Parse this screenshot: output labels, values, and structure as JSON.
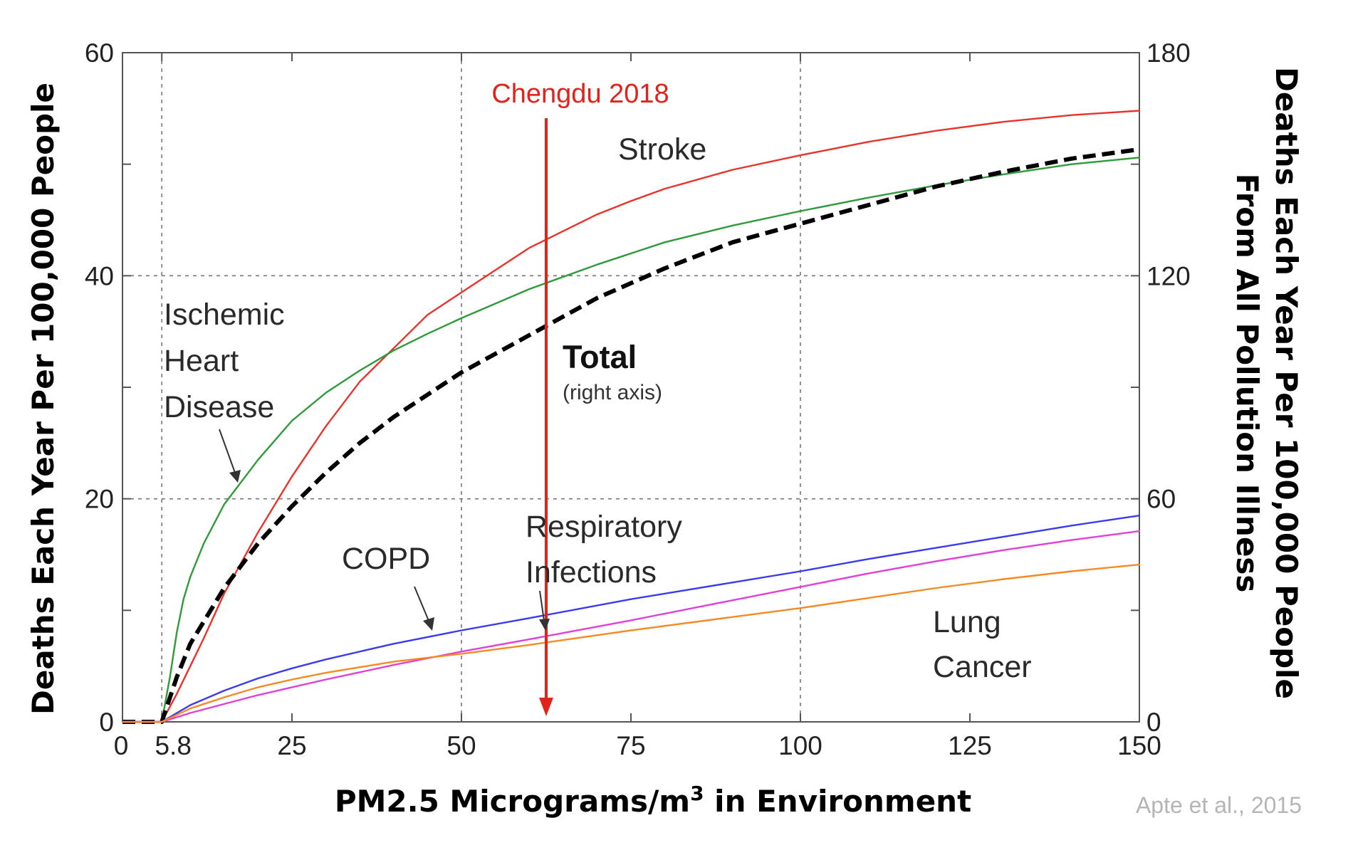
{
  "chart_data": {
    "type": "line",
    "xlabel": "PM2.5 Micrograms/m",
    "xlabel_sup": "3",
    "xlabel_tail": " in Environment",
    "ylabel_left": "Deaths Each Year Per 100,000 People",
    "ylabel_right_line1": "Deaths Each Year Per 100,000 People",
    "ylabel_right_line2": "From All Pollution Illness",
    "xlim": [
      0,
      150
    ],
    "ylim_left": [
      0,
      60
    ],
    "ylim_right": [
      0,
      180
    ],
    "x_ticks": [
      {
        "value": 0,
        "label": "0"
      },
      {
        "value": 5.8,
        "label": "5.8"
      },
      {
        "value": 25,
        "label": "25"
      },
      {
        "value": 50,
        "label": "50"
      },
      {
        "value": 75,
        "label": "75"
      },
      {
        "value": 100,
        "label": "100"
      },
      {
        "value": 125,
        "label": "125"
      },
      {
        "value": 150,
        "label": "150"
      }
    ],
    "y_ticks_left": [
      {
        "value": 0,
        "label": "0"
      },
      {
        "value": 20,
        "label": "20"
      },
      {
        "value": 40,
        "label": "40"
      },
      {
        "value": 60,
        "label": "60"
      }
    ],
    "y_ticks_right": [
      {
        "value": 0,
        "label": "0"
      },
      {
        "value": 60,
        "label": "60"
      },
      {
        "value": 120,
        "label": "120"
      },
      {
        "value": 180,
        "label": "180"
      }
    ],
    "grid": true,
    "series": [
      {
        "name": "Stroke",
        "color": "#e8332b",
        "dashed": false,
        "axis": "left",
        "points": [
          [
            0,
            0
          ],
          [
            5.8,
            0
          ],
          [
            8,
            2.5
          ],
          [
            10,
            5
          ],
          [
            12,
            7.5
          ],
          [
            15,
            11.5
          ],
          [
            20,
            17
          ],
          [
            25,
            22
          ],
          [
            30,
            26.5
          ],
          [
            35,
            30.5
          ],
          [
            40,
            33.5
          ],
          [
            45,
            36.5
          ],
          [
            50,
            38.5
          ],
          [
            55,
            40.5
          ],
          [
            60,
            42.5
          ],
          [
            65,
            44
          ],
          [
            70,
            45.5
          ],
          [
            75,
            46.7
          ],
          [
            80,
            47.8
          ],
          [
            90,
            49.5
          ],
          [
            100,
            50.8
          ],
          [
            110,
            52
          ],
          [
            120,
            53
          ],
          [
            130,
            53.8
          ],
          [
            140,
            54.4
          ],
          [
            150,
            54.8
          ]
        ]
      },
      {
        "name": "Ischemic Heart Disease",
        "color": "#2e9a3a",
        "dashed": false,
        "axis": "left",
        "points": [
          [
            0,
            0
          ],
          [
            5.8,
            0
          ],
          [
            7,
            4
          ],
          [
            8,
            8
          ],
          [
            9,
            11
          ],
          [
            10,
            13
          ],
          [
            12,
            16
          ],
          [
            15,
            19.5
          ],
          [
            20,
            23.5
          ],
          [
            25,
            27
          ],
          [
            30,
            29.5
          ],
          [
            35,
            31.5
          ],
          [
            40,
            33.3
          ],
          [
            45,
            34.8
          ],
          [
            50,
            36.2
          ],
          [
            60,
            38.8
          ],
          [
            70,
            41
          ],
          [
            80,
            43
          ],
          [
            90,
            44.5
          ],
          [
            100,
            45.8
          ],
          [
            110,
            47
          ],
          [
            120,
            48.1
          ],
          [
            130,
            49.1
          ],
          [
            140,
            50
          ],
          [
            150,
            50.6
          ]
        ]
      },
      {
        "name": "Total",
        "color": "#000000",
        "dashed": true,
        "axis": "right",
        "points": [
          [
            0,
            0
          ],
          [
            5.8,
            0
          ],
          [
            8,
            12
          ],
          [
            10,
            21
          ],
          [
            15,
            36
          ],
          [
            20,
            48
          ],
          [
            25,
            58
          ],
          [
            30,
            67
          ],
          [
            35,
            75
          ],
          [
            40,
            82
          ],
          [
            45,
            88
          ],
          [
            50,
            94
          ],
          [
            55,
            99
          ],
          [
            60,
            104
          ],
          [
            65,
            109
          ],
          [
            70,
            114
          ],
          [
            75,
            118
          ],
          [
            80,
            122
          ],
          [
            90,
            129
          ],
          [
            100,
            134
          ],
          [
            110,
            139
          ],
          [
            120,
            144
          ],
          [
            130,
            148
          ],
          [
            140,
            151.5
          ],
          [
            150,
            154
          ]
        ]
      },
      {
        "name": "COPD",
        "color": "#3a3af0",
        "dashed": false,
        "axis": "left",
        "points": [
          [
            0,
            0
          ],
          [
            5.8,
            0
          ],
          [
            10,
            1.5
          ],
          [
            15,
            2.8
          ],
          [
            20,
            3.9
          ],
          [
            25,
            4.8
          ],
          [
            30,
            5.6
          ],
          [
            40,
            7
          ],
          [
            50,
            8.2
          ],
          [
            60,
            9.3
          ],
          [
            75,
            11
          ],
          [
            90,
            12.5
          ],
          [
            100,
            13.5
          ],
          [
            110,
            14.6
          ],
          [
            120,
            15.6
          ],
          [
            130,
            16.6
          ],
          [
            140,
            17.6
          ],
          [
            150,
            18.5
          ]
        ]
      },
      {
        "name": "Respiratory Infections",
        "color": "#e040d8",
        "dashed": false,
        "axis": "left",
        "points": [
          [
            0,
            0
          ],
          [
            5.8,
            0
          ],
          [
            10,
            0.8
          ],
          [
            15,
            1.6
          ],
          [
            20,
            2.4
          ],
          [
            25,
            3.1
          ],
          [
            30,
            3.8
          ],
          [
            40,
            5.1
          ],
          [
            50,
            6.3
          ],
          [
            60,
            7.4
          ],
          [
            75,
            9.1
          ],
          [
            90,
            10.9
          ],
          [
            100,
            12.1
          ],
          [
            110,
            13.3
          ],
          [
            120,
            14.4
          ],
          [
            130,
            15.4
          ],
          [
            140,
            16.3
          ],
          [
            150,
            17.1
          ]
        ]
      },
      {
        "name": "Lung Cancer",
        "color": "#f58a25",
        "dashed": false,
        "axis": "left",
        "points": [
          [
            0,
            0
          ],
          [
            5.8,
            0
          ],
          [
            10,
            1.2
          ],
          [
            15,
            2.2
          ],
          [
            20,
            3.1
          ],
          [
            25,
            3.8
          ],
          [
            30,
            4.4
          ],
          [
            40,
            5.4
          ],
          [
            50,
            6.1
          ],
          [
            60,
            6.9
          ],
          [
            75,
            8.2
          ],
          [
            90,
            9.4
          ],
          [
            100,
            10.2
          ],
          [
            110,
            11.1
          ],
          [
            120,
            12
          ],
          [
            130,
            12.8
          ],
          [
            140,
            13.5
          ],
          [
            150,
            14.1
          ]
        ]
      }
    ],
    "marker": {
      "label": "Chengdu 2018",
      "x": 62.5,
      "color": "#e0241c"
    },
    "annotations": [
      {
        "lines": [
          "Stroke"
        ]
      },
      {
        "lines": [
          "Ischemic",
          "Heart",
          "Disease"
        ]
      },
      {
        "lines": [
          "Total"
        ],
        "sub": "(right axis)"
      },
      {
        "lines": [
          "COPD"
        ]
      },
      {
        "lines": [
          "Respiratory",
          "Infections"
        ]
      },
      {
        "lines": [
          "Lung",
          "Cancer"
        ]
      }
    ],
    "source": "Apte et al., 2015"
  }
}
